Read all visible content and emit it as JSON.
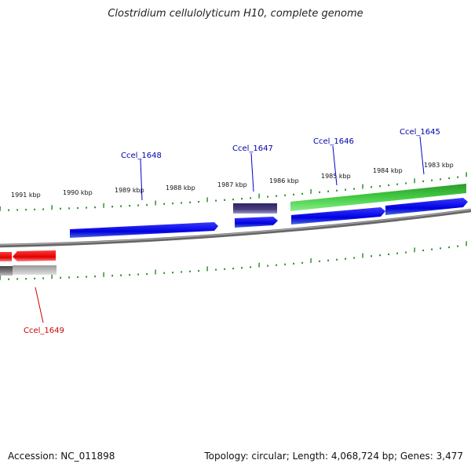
{
  "title": "Clostridium cellulolyticum H10, complete genome",
  "footer": {
    "accession": "Accession: NC_011898",
    "summary": "Topology: circular; Length: 4,068,724 bp; Genes: 3,477"
  },
  "colors": {
    "cds_forward": "#0000ee",
    "cds_reverse": "#ee0000",
    "rna": "#33bb33",
    "other": "#4a4080",
    "backbone": "#777777",
    "ticks": "#228822"
  },
  "scale_labels": [
    "1991 kbp",
    "1990 kbp",
    "1989 kbp",
    "1988 kbp",
    "1987 kbp",
    "1986 kbp",
    "1985 kbp",
    "1984 kbp",
    "1983 kbp"
  ],
  "gene_labels": {
    "ccel_1648": "Ccel_1648",
    "ccel_1647": "Ccel_1647",
    "ccel_1646": "Ccel_1646",
    "ccel_1645": "Ccel_1645",
    "ccel_1649": "Ccel_1649"
  }
}
